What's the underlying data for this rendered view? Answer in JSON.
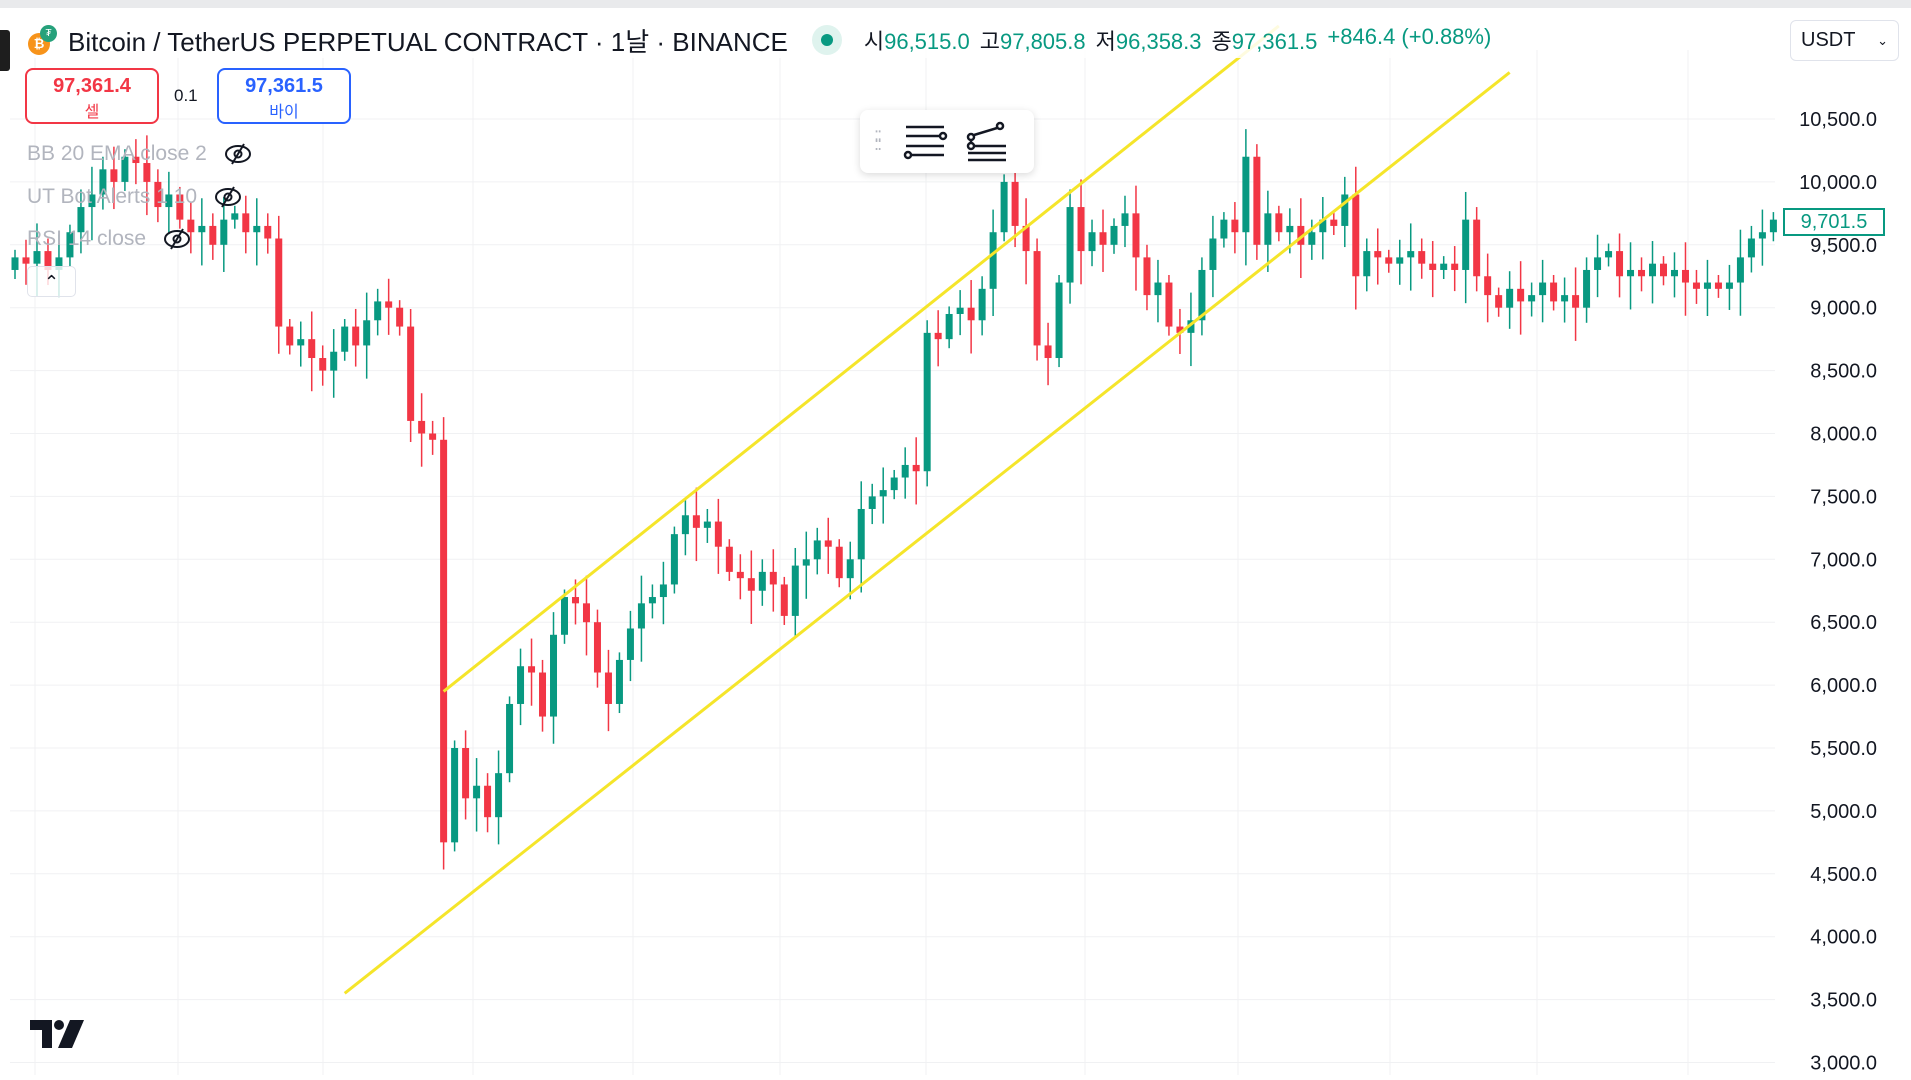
{
  "header": {
    "title": "Bitcoin / TetherUS PERPETUAL CONTRACT · 1날 · BINANCE",
    "ohlc": [
      {
        "k": "시",
        "v": "96,515.0"
      },
      {
        "k": "고",
        "v": "97,805.8"
      },
      {
        "k": "저",
        "v": "96,358.3"
      },
      {
        "k": "종",
        "v": "97,361.5"
      }
    ],
    "change": "+846.4 (+0.88%)",
    "currency": "USDT"
  },
  "trade": {
    "sell_price": "97,361.4",
    "sell_label": "셀",
    "qty": "0.1",
    "buy_price": "97,361.5",
    "buy_label": "바이"
  },
  "legend": [
    "BB 20 EMA close 2",
    "UT Bot Alerts 1 10",
    "RSI 14 close"
  ],
  "price_tag": "9,701.5",
  "colors": {
    "up": "#089981",
    "down": "#f23645",
    "trendline": "#f5e52a"
  },
  "chart_data": {
    "type": "candlestick",
    "yaxis_labels": [
      "10,500.0",
      "10,000.0",
      "9,500.0",
      "9,000.0",
      "8,500.0",
      "8,000.0",
      "7,500.0",
      "7,000.0",
      "6,500.0",
      "6,000.0",
      "5,500.0",
      "5,000.0",
      "4,500.0",
      "4,000.0",
      "3,500.0",
      "3,000.0"
    ],
    "ylim": [
      3000,
      10500
    ],
    "first_open": 9300,
    "closes": [
      9400,
      9350,
      9450,
      9300,
      9400,
      9600,
      9800,
      9900,
      10100,
      10000,
      10200,
      10150,
      10000,
      9800,
      9900,
      9700,
      9600,
      9650,
      9500,
      9700,
      9750,
      9600,
      9650,
      9550,
      8850,
      8700,
      8750,
      8600,
      8500,
      8650,
      8850,
      8700,
      8900,
      9050,
      9000,
      8850,
      8100,
      8000,
      7950,
      4750,
      5500,
      5100,
      5200,
      4950,
      5300,
      5850,
      6150,
      6100,
      5750,
      6400,
      6700,
      6650,
      6500,
      6100,
      5850,
      6200,
      6450,
      6650,
      6700,
      6800,
      7200,
      7350,
      7250,
      7300,
      7100,
      6900,
      6850,
      6750,
      6900,
      6800,
      6550,
      6950,
      7000,
      7150,
      7100,
      6850,
      7000,
      7400,
      7500,
      7550,
      7650,
      7750,
      7700,
      8800,
      8750,
      8950,
      9000,
      8900,
      9150,
      9600,
      10000,
      9650,
      9450,
      8700,
      8600,
      9200,
      9800,
      9450,
      9600,
      9500,
      9650,
      9750,
      9400,
      9100,
      9200,
      8850,
      8800,
      8900,
      9300,
      9550,
      9700,
      9600,
      10200,
      9500,
      9750,
      9600,
      9650,
      9500,
      9600,
      9700,
      9650,
      9900,
      9250,
      9450,
      9400,
      9350,
      9400,
      9450,
      9350,
      9300,
      9350,
      9300,
      9700,
      9250,
      9100,
      9000,
      9150,
      9050,
      9100,
      9200,
      9050,
      9100,
      9000,
      9300,
      9400,
      9450,
      9250,
      9300,
      9250,
      9350,
      9250,
      9300,
      9200,
      9150,
      9200,
      9150,
      9200,
      9400,
      9550,
      9600,
      9700
    ],
    "trendlines": [
      {
        "from": [
          39,
          5950
        ],
        "to": [
          115,
          11240
        ]
      },
      {
        "from": [
          30,
          3550
        ],
        "to": [
          136,
          10870
        ]
      }
    ]
  }
}
